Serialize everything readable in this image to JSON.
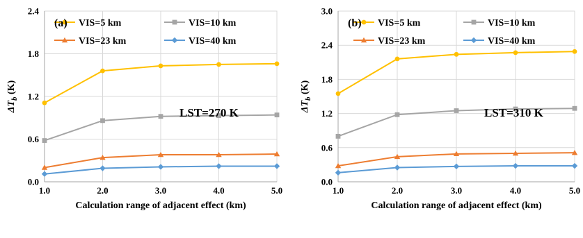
{
  "chart_data": [
    {
      "type": "line",
      "panel_label": "(a)",
      "annotation": "LST=270 K",
      "xlabel": "Calculation range of adjacent effect (km)",
      "ylabel": "ΔT",
      "ylabel_sub": "b",
      "ylabel_unit": " (K)",
      "x": [
        1.0,
        2.0,
        3.0,
        4.0,
        5.0
      ],
      "xticks": [
        "1.0",
        "2.0",
        "3.0",
        "4.0",
        "5.0"
      ],
      "xlim": [
        1.0,
        5.0
      ],
      "yticks": [
        "0.0",
        "0.6",
        "1.2",
        "1.8",
        "2.4"
      ],
      "ylim": [
        0,
        2.4
      ],
      "grid": true,
      "legend_position": "top",
      "series": [
        {
          "name": "VIS=5 km",
          "color": "#FFC000",
          "marker": "circle",
          "values": [
            1.11,
            1.56,
            1.63,
            1.65,
            1.66
          ]
        },
        {
          "name": "VIS=10 km",
          "color": "#A5A5A5",
          "marker": "square",
          "values": [
            0.58,
            0.86,
            0.92,
            0.93,
            0.94
          ]
        },
        {
          "name": "VIS=23 km",
          "color": "#ED7D31",
          "marker": "triangle",
          "values": [
            0.2,
            0.34,
            0.38,
            0.38,
            0.39
          ]
        },
        {
          "name": "VIS=40 km",
          "color": "#5B9BD5",
          "marker": "diamond",
          "values": [
            0.11,
            0.19,
            0.21,
            0.22,
            0.22
          ]
        }
      ]
    },
    {
      "type": "line",
      "panel_label": "(b)",
      "annotation": "LST=310 K",
      "xlabel": "Calculation range of adjacent effect (km)",
      "ylabel": "ΔT",
      "ylabel_sub": "b",
      "ylabel_unit": " (K)",
      "x": [
        1.0,
        2.0,
        3.0,
        4.0,
        5.0
      ],
      "xticks": [
        "1.0",
        "2.0",
        "3.0",
        "4.0",
        "5.0"
      ],
      "xlim": [
        1.0,
        5.0
      ],
      "yticks": [
        "0.0",
        "0.6",
        "1.2",
        "1.8",
        "2.4",
        "3.0"
      ],
      "ylim": [
        0,
        3.0
      ],
      "grid": true,
      "legend_position": "top",
      "series": [
        {
          "name": "VIS=5 km",
          "color": "#FFC000",
          "marker": "circle",
          "values": [
            1.55,
            2.16,
            2.24,
            2.27,
            2.29
          ]
        },
        {
          "name": "VIS=10 km",
          "color": "#A5A5A5",
          "marker": "square",
          "values": [
            0.8,
            1.18,
            1.25,
            1.28,
            1.29
          ]
        },
        {
          "name": "VIS=23 km",
          "color": "#ED7D31",
          "marker": "triangle",
          "values": [
            0.28,
            0.44,
            0.49,
            0.5,
            0.51
          ]
        },
        {
          "name": "VIS=40 km",
          "color": "#5B9BD5",
          "marker": "diamond",
          "values": [
            0.16,
            0.25,
            0.27,
            0.28,
            0.28
          ]
        }
      ]
    }
  ]
}
